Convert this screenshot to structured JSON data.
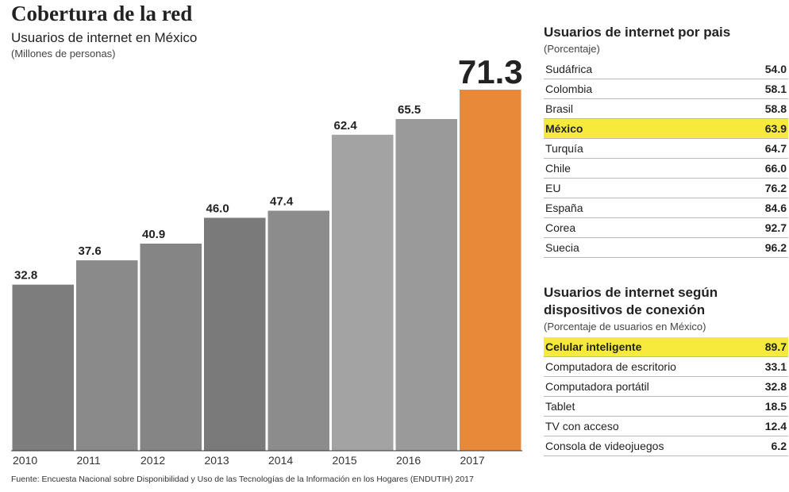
{
  "chart_data": {
    "type": "bar",
    "title": "Cobertura de la red",
    "subtitle": "Usuarios de internet en México",
    "unit": "(Millones de personas)",
    "categories": [
      "2010",
      "2011",
      "2012",
      "2013",
      "2014",
      "2015",
      "2016",
      "2017"
    ],
    "values": [
      32.8,
      37.6,
      40.9,
      46.0,
      47.4,
      62.4,
      65.5,
      71.3
    ],
    "value_labels": [
      "32.8",
      "37.6",
      "40.9",
      "46.0",
      "47.4",
      "62.4",
      "65.5",
      "71.3"
    ],
    "colors": [
      "#7d7d7d",
      "#8a8a8a",
      "#858585",
      "#7a7a7a",
      "#8c8c8c",
      "#a3a3a3",
      "#9a9a9a",
      "#e8893a"
    ]
  },
  "tables": [
    {
      "title": "Usuarios de internet por pais",
      "subtitle": "(Porcentaje)",
      "highlight_color": "#f7ea3c",
      "rows": [
        {
          "label": "Sudáfrica",
          "value": "54.0"
        },
        {
          "label": "Colombia",
          "value": "58.1"
        },
        {
          "label": "Brasil",
          "value": "58.8"
        },
        {
          "label": "México",
          "value": "63.9",
          "highlight": true
        },
        {
          "label": "Turquía",
          "value": "64.7"
        },
        {
          "label": "Chile",
          "value": "66.0"
        },
        {
          "label": "EU",
          "value": "76.2"
        },
        {
          "label": "España",
          "value": "84.6"
        },
        {
          "label": "Corea",
          "value": "92.7"
        },
        {
          "label": "Suecia",
          "value": "96.2"
        }
      ]
    },
    {
      "title": "Usuarios de internet según dispositivos de conexión",
      "subtitle": "(Porcentaje de usuarios en México)",
      "highlight_color": "#f7ea3c",
      "rows": [
        {
          "label": "Celular inteligente",
          "value": "89.7",
          "highlight": true
        },
        {
          "label": "Computadora de escritorio",
          "value": "33.1"
        },
        {
          "label": "Computadora portátil",
          "value": "32.8"
        },
        {
          "label": "Tablet",
          "value": "18.5"
        },
        {
          "label": "TV con acceso",
          "value": "12.4"
        },
        {
          "label": "Consola de videojuegos",
          "value": "6.2"
        }
      ]
    }
  ],
  "source": "Fuente: Encuesta Nacional sobre Disponibilidad y Uso de las Tecnologías de la Información en los Hogares (ENDUTIH) 2017"
}
